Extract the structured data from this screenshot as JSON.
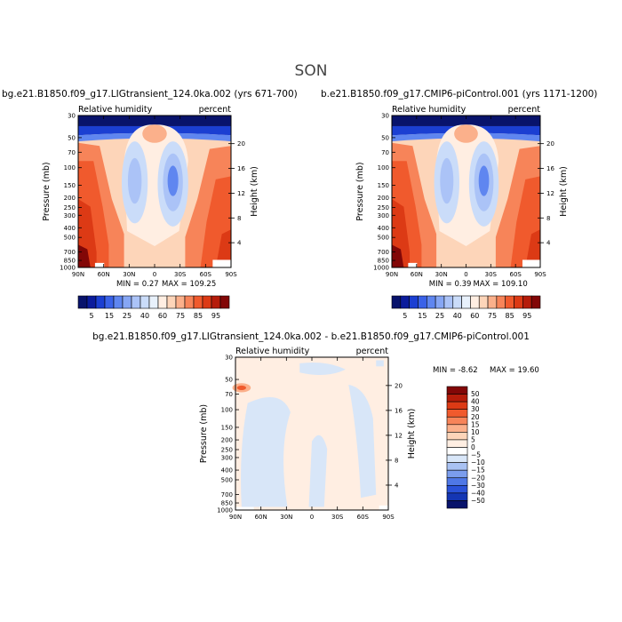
{
  "figure": {
    "season": "SON",
    "common": {
      "x_tick_labels": [
        "90N",
        "60N",
        "30N",
        "0",
        "30S",
        "60S",
        "90S"
      ],
      "p_tick_labels": [
        "30",
        "50",
        "70",
        "100",
        "150",
        "200",
        "250",
        "300",
        "400",
        "500",
        "700",
        "850",
        "1000"
      ],
      "p_axis_label": "Pressure (mb)",
      "h_axis_label": "Height (km)"
    }
  },
  "chart_data": [
    {
      "type": "heatmap",
      "title": "bg.e21.B1850.f09_g17.LIGtransient_124.0ka.002 (yrs 671-700)",
      "left_label": "Relative humidity",
      "right_label": "percent",
      "ylabel": "Pressure (mb)",
      "y2label": "Height (km)",
      "x_ticks": [
        90,
        60,
        30,
        0,
        -30,
        -60,
        -90
      ],
      "y_ticks_mb": [
        30,
        50,
        70,
        100,
        150,
        200,
        250,
        300,
        400,
        500,
        700,
        850,
        1000
      ],
      "height_ticks_km": [
        4,
        8,
        12,
        16,
        20
      ],
      "ylim_mb": [
        1000,
        30
      ],
      "min_text": "MIN =    0.27",
      "max_text": "MAX = 109.25",
      "colorbar": {
        "orientation": "horizontal",
        "levels": [
          5,
          15,
          25,
          40,
          60,
          75,
          85,
          95
        ],
        "colors": [
          "#08136b",
          "#0b1c9c",
          "#1b3fd2",
          "#3a62e8",
          "#5f86f0",
          "#86a6f4",
          "#abc3f7",
          "#cadcf9",
          "#e8f1fb",
          "#ffeee2",
          "#fdd5b9",
          "#fbb08b",
          "#f78459",
          "#f05a2d",
          "#dc3a15",
          "#b51c0a",
          "#820707"
        ]
      }
    },
    {
      "type": "heatmap",
      "title": "b.e21.B1850.f09_g17.CMIP6-piControl.001 (yrs 1171-1200)",
      "left_label": "Relative humidity",
      "right_label": "percent",
      "ylabel": "Pressure (mb)",
      "y2label": "Height (km)",
      "x_ticks": [
        90,
        60,
        30,
        0,
        -30,
        -60,
        -90
      ],
      "y_ticks_mb": [
        30,
        50,
        70,
        100,
        150,
        200,
        250,
        300,
        400,
        500,
        700,
        850,
        1000
      ],
      "height_ticks_km": [
        4,
        8,
        12,
        16,
        20
      ],
      "ylim_mb": [
        1000,
        30
      ],
      "min_text": "MIN =    0.39",
      "max_text": "MAX = 109.10",
      "colorbar": {
        "orientation": "horizontal",
        "levels": [
          5,
          15,
          25,
          40,
          60,
          75,
          85,
          95
        ],
        "colors": [
          "#08136b",
          "#0b1c9c",
          "#1b3fd2",
          "#3a62e8",
          "#5f86f0",
          "#86a6f4",
          "#abc3f7",
          "#cadcf9",
          "#e8f1fb",
          "#ffeee2",
          "#fdd5b9",
          "#fbb08b",
          "#f78459",
          "#f05a2d",
          "#dc3a15",
          "#b51c0a",
          "#820707"
        ]
      }
    },
    {
      "type": "heatmap",
      "title": "bg.e21.B1850.f09_g17.LIGtransient_124.0ka.002 - b.e21.B1850.f09_g17.CMIP6-piControl.001",
      "left_label": "Relative humidity",
      "right_label": "percent",
      "ylabel": "Pressure (mb)",
      "y2label": "Height (km)",
      "x_ticks": [
        90,
        60,
        30,
        0,
        -30,
        -60,
        -90
      ],
      "y_ticks_mb": [
        30,
        50,
        70,
        100,
        150,
        200,
        250,
        300,
        400,
        500,
        700,
        850,
        1000
      ],
      "height_ticks_km": [
        4,
        8,
        12,
        16,
        20
      ],
      "ylim_mb": [
        1000,
        30
      ],
      "min_text": "MIN =  -8.62",
      "max_text": "MAX =  19.60",
      "colorbar": {
        "orientation": "vertical",
        "levels": [
          50,
          40,
          30,
          20,
          15,
          10,
          5,
          0,
          -5,
          -10,
          -15,
          -20,
          -30,
          -40,
          -50
        ],
        "level_labels": [
          "50",
          "40",
          "30",
          "20",
          "15",
          "10",
          "5",
          "0",
          "−5",
          "−10",
          "−15",
          "−20",
          "−30",
          "−40",
          "−50"
        ],
        "colors": [
          "#820707",
          "#b51c0a",
          "#dc3a15",
          "#f05a2d",
          "#f78459",
          "#fbb08b",
          "#fdd5b9",
          "#ffeee2",
          "#ffffff",
          "#d8e6f8",
          "#a9c2f3",
          "#7b9ded",
          "#4f78e6",
          "#2a52d8",
          "#1436b4",
          "#08136b"
        ]
      }
    }
  ]
}
